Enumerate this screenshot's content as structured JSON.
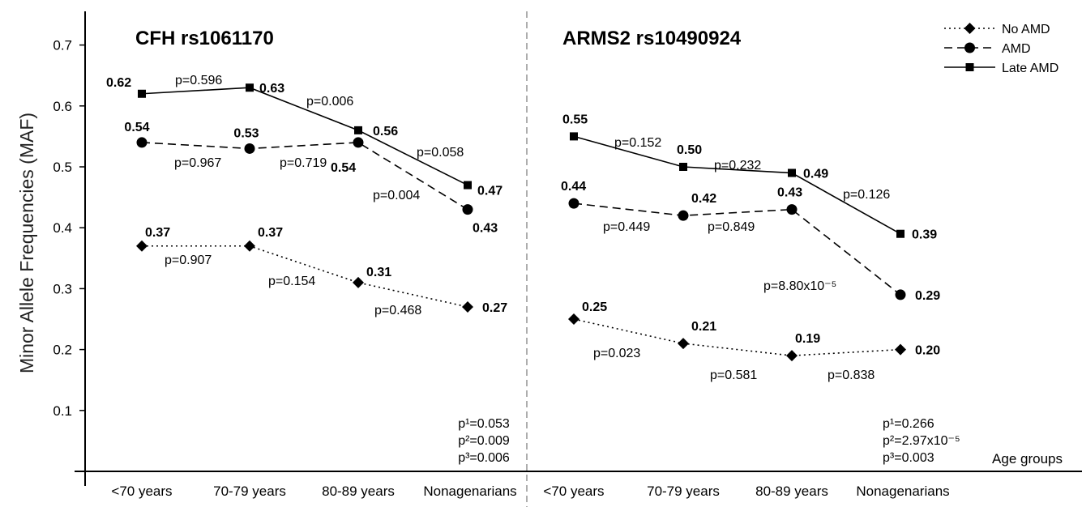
{
  "chart_data": {
    "type": "line",
    "ylabel": "Minor Allele Frequencies (MAF)",
    "xlabel": "Age groups",
    "ylim": [
      0,
      0.75
    ],
    "yticks": [
      "0.1",
      "0.2",
      "0.3",
      "0.4",
      "0.5",
      "0.6",
      "0.7"
    ],
    "categories": [
      "<70 years",
      "70-79 years",
      "80-89 years",
      "Nonagenarians"
    ],
    "legend": {
      "position": "top-right",
      "entries": [
        {
          "name": "No AMD",
          "style": "dotted",
          "marker": "diamond"
        },
        {
          "name": "AMD",
          "style": "dashed",
          "marker": "circle"
        },
        {
          "name": "Late AMD",
          "style": "solid",
          "marker": "square"
        }
      ]
    },
    "panels": [
      {
        "title": "CFH rs1061170",
        "series": [
          {
            "name": "No AMD",
            "values": [
              0.37,
              0.37,
              0.31,
              0.27
            ],
            "labels": [
              "0.37",
              "0.37",
              "0.31",
              "0.27"
            ]
          },
          {
            "name": "AMD",
            "values": [
              0.54,
              0.53,
              0.54,
              0.43
            ],
            "labels": [
              "0.54",
              "0.53",
              "0.54",
              "0.43"
            ]
          },
          {
            "name": "Late AMD",
            "values": [
              0.62,
              0.63,
              0.56,
              0.47
            ],
            "labels": [
              "0.62",
              "0.63",
              "0.56",
              "0.47"
            ]
          }
        ],
        "segment_pvalues": {
          "No AMD": [
            "p=0.907",
            "p=0.154",
            "p=0.468"
          ],
          "AMD": [
            "p=0.967",
            "p=0.719",
            "p=0.004"
          ],
          "Late AMD": [
            "p=0.596",
            "p=0.006",
            "p=0.058"
          ]
        },
        "summary": [
          "p¹=0.053",
          "p²=0.009",
          "p³=0.006"
        ]
      },
      {
        "title": "ARMS2 rs10490924",
        "series": [
          {
            "name": "No AMD",
            "values": [
              0.25,
              0.21,
              0.19,
              0.2
            ],
            "labels": [
              "0.25",
              "0.21",
              "0.19",
              "0.20"
            ]
          },
          {
            "name": "AMD",
            "values": [
              0.44,
              0.42,
              0.43,
              0.29
            ],
            "labels": [
              "0.44",
              "0.42",
              "0.43",
              "0.29"
            ]
          },
          {
            "name": "Late AMD",
            "values": [
              0.55,
              0.5,
              0.49,
              0.39
            ],
            "labels": [
              "0.55",
              "0.50",
              "0.49",
              "0.39"
            ]
          }
        ],
        "segment_pvalues": {
          "No AMD": [
            "p=0.023",
            "p=0.581",
            "p=0.838"
          ],
          "AMD": [
            "p=0.449",
            "p=0.849",
            "p=8.80x10⁻⁵"
          ],
          "Late AMD": [
            "p=0.152",
            "p=0.232",
            "p=0.126"
          ]
        },
        "summary": [
          "p¹=0.266",
          "p²=2.97x10⁻⁵",
          "p³=0.003"
        ]
      }
    ]
  }
}
